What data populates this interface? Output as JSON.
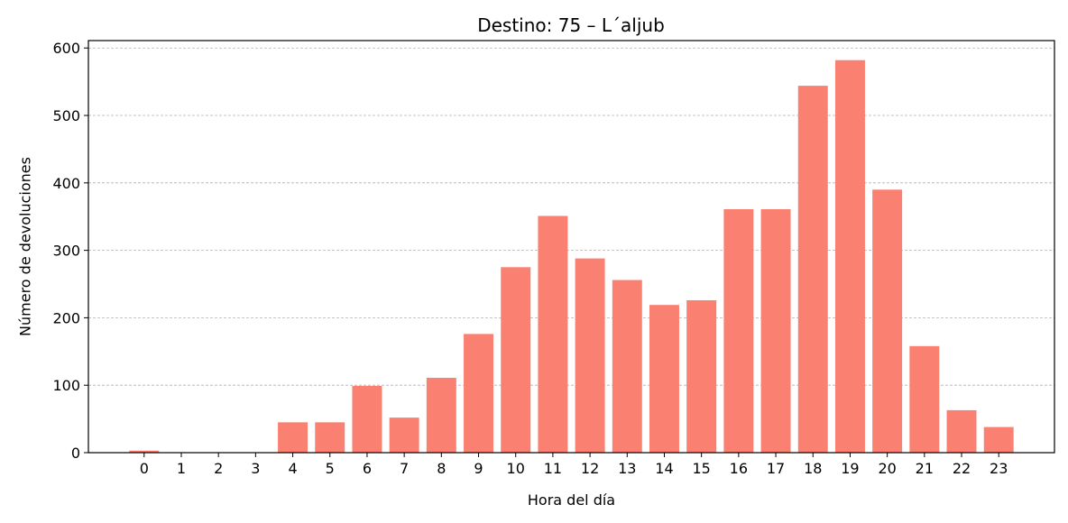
{
  "chart_data": {
    "type": "bar",
    "title": "Destino: 75 – L´aljub",
    "xlabel": "Hora del día",
    "ylabel": "Número de devoluciones",
    "categories": [
      "0",
      "1",
      "2",
      "3",
      "4",
      "5",
      "6",
      "7",
      "8",
      "9",
      "10",
      "11",
      "12",
      "13",
      "14",
      "15",
      "16",
      "17",
      "18",
      "19",
      "20",
      "21",
      "22",
      "23"
    ],
    "values": [
      3,
      0,
      0,
      0,
      45,
      45,
      99,
      52,
      111,
      176,
      275,
      351,
      288,
      256,
      219,
      226,
      361,
      361,
      544,
      582,
      390,
      158,
      63,
      38
    ],
    "yticks": [
      0,
      100,
      200,
      300,
      400,
      500,
      600
    ],
    "ylim": [
      0,
      611
    ],
    "xlim": [
      -1.5,
      24.5
    ],
    "grid": "y",
    "bar_color": "#fa8072"
  }
}
